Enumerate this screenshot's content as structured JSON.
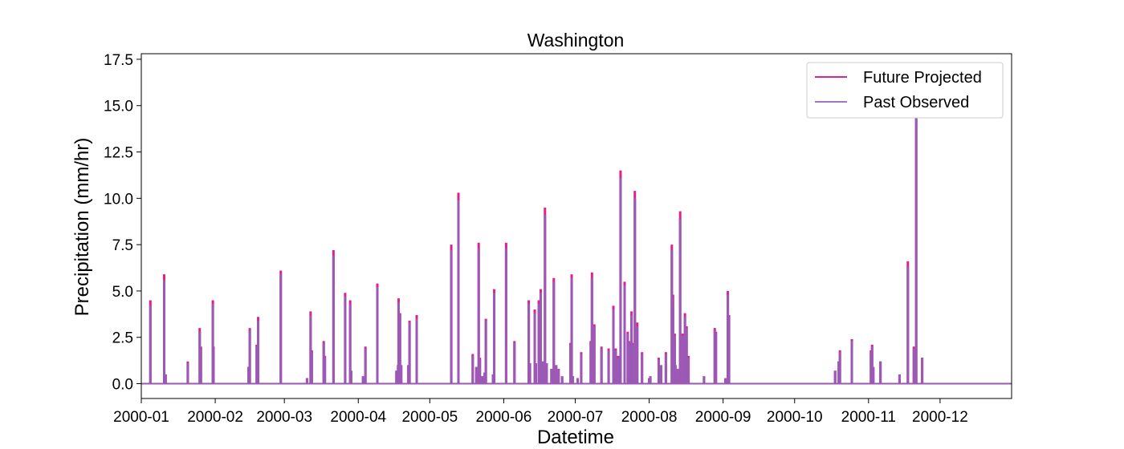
{
  "chart_data": {
    "type": "line",
    "title": "Washington",
    "xlabel": "Datetime",
    "ylabel": "Precipitation (mm/hr)",
    "x_range": [
      0,
      365
    ],
    "ylim": [
      -0.8,
      17.8
    ],
    "x_ticks": [
      {
        "label": "2000-01",
        "day": 0
      },
      {
        "label": "2000-02",
        "day": 31
      },
      {
        "label": "2000-03",
        "day": 60
      },
      {
        "label": "2000-04",
        "day": 91
      },
      {
        "label": "2000-05",
        "day": 121
      },
      {
        "label": "2000-06",
        "day": 152
      },
      {
        "label": "2000-07",
        "day": 182
      },
      {
        "label": "2000-08",
        "day": 213
      },
      {
        "label": "2000-09",
        "day": 244
      },
      {
        "label": "2000-10",
        "day": 274
      },
      {
        "label": "2000-11",
        "day": 305
      },
      {
        "label": "2000-12",
        "day": 335
      }
    ],
    "y_ticks": [
      0.0,
      2.5,
      5.0,
      7.5,
      10.0,
      12.5,
      15.0,
      17.5
    ],
    "y_tick_labels": [
      "0.0",
      "2.5",
      "5.0",
      "7.5",
      "10.0",
      "12.5",
      "15.0",
      "17.5"
    ],
    "grid": false,
    "legend_position": "top-right",
    "colors": {
      "future": "#e0218a",
      "past": "#9b79c6",
      "overlap": "#9b59b6"
    },
    "series": [
      {
        "name": "Future Projected",
        "color": "#e0218a",
        "peaks": [
          [
            3.8,
            4.5
          ],
          [
            9.6,
            5.9
          ],
          [
            10.2,
            0.5
          ],
          [
            19.5,
            1.2
          ],
          [
            24.5,
            3.0
          ],
          [
            25,
            2.0
          ],
          [
            30,
            4.5
          ],
          [
            30.3,
            2.0
          ],
          [
            45,
            0.9
          ],
          [
            45.5,
            3.0
          ],
          [
            48.4,
            2.1
          ],
          [
            49,
            3.6
          ],
          [
            58.5,
            6.1
          ],
          [
            69.5,
            0.3
          ],
          [
            71,
            3.9
          ],
          [
            71.5,
            1.8
          ],
          [
            76.5,
            2.3
          ],
          [
            77,
            1.5
          ],
          [
            80.6,
            7.2
          ],
          [
            85.5,
            4.9
          ],
          [
            87.6,
            4.5
          ],
          [
            88,
            0.7
          ],
          [
            93,
            0.4
          ],
          [
            94,
            2.0
          ],
          [
            99,
            5.4
          ],
          [
            107,
            0.7
          ],
          [
            107.7,
            1.0
          ],
          [
            107.9,
            4.6
          ],
          [
            108.5,
            3.8
          ],
          [
            109,
            1.0
          ],
          [
            112,
            1.0
          ],
          [
            112.5,
            3.4
          ],
          [
            115.5,
            3.7
          ],
          [
            130,
            7.5
          ],
          [
            133,
            10.3
          ],
          [
            139,
            1.6
          ],
          [
            140.5,
            0.9
          ],
          [
            141.5,
            7.6
          ],
          [
            142,
            1.4
          ],
          [
            143,
            0.4
          ],
          [
            144,
            0.6
          ],
          [
            144.5,
            3.5
          ],
          [
            147.5,
            0.5
          ],
          [
            148,
            5.1
          ],
          [
            153,
            7.6
          ],
          [
            156.5,
            2.3
          ],
          [
            162.5,
            4.5
          ],
          [
            163,
            1.1
          ],
          [
            165,
            4.0
          ],
          [
            165.5,
            1.1
          ],
          [
            166.7,
            4.5
          ],
          [
            167.5,
            5.1
          ],
          [
            168,
            1.2
          ],
          [
            168.7,
            1.2
          ],
          [
            169.3,
            9.5
          ],
          [
            170,
            1.1
          ],
          [
            172,
            0.8
          ],
          [
            173,
            5.7
          ],
          [
            174,
            1.0
          ],
          [
            175,
            0.8
          ],
          [
            176.5,
            0.4
          ],
          [
            180,
            2.2
          ],
          [
            180.5,
            5.9
          ],
          [
            181,
            0.4
          ],
          [
            183,
            0.3
          ],
          [
            184.5,
            1.7
          ],
          [
            188.5,
            2.3
          ],
          [
            189,
            6.0
          ],
          [
            190,
            3.2
          ],
          [
            193,
            2.0
          ],
          [
            196,
            1.9
          ],
          [
            198,
            4.2
          ],
          [
            199,
            1.9
          ],
          [
            200,
            1.5
          ],
          [
            201,
            11.5
          ],
          [
            202.7,
            5.5
          ],
          [
            204,
            2.8
          ],
          [
            204.5,
            2.3
          ],
          [
            205,
            2.2
          ],
          [
            205.6,
            3.9
          ],
          [
            206,
            2.2
          ],
          [
            207,
            10.4
          ],
          [
            208,
            3.3
          ],
          [
            210,
            1.7
          ],
          [
            213,
            0.3
          ],
          [
            213.5,
            0.4
          ],
          [
            217,
            1.4
          ],
          [
            218,
            1.0
          ],
          [
            220,
            1.7
          ],
          [
            222.5,
            7.5
          ],
          [
            223,
            4.8
          ],
          [
            223.7,
            2.7
          ],
          [
            224,
            1.0
          ],
          [
            225,
            0.8
          ],
          [
            226,
            9.3
          ],
          [
            227,
            2.7
          ],
          [
            228,
            3.8
          ],
          [
            228.7,
            3.1
          ],
          [
            229.5,
            1.5
          ],
          [
            236,
            0.4
          ],
          [
            240.5,
            3.0
          ],
          [
            241,
            2.8
          ],
          [
            245,
            0.3
          ],
          [
            246,
            5.0
          ],
          [
            246.5,
            3.7
          ],
          [
            291,
            0.7
          ],
          [
            292.5,
            1.2
          ],
          [
            293,
            1.8
          ],
          [
            298,
            2.4
          ],
          [
            306,
            1.8
          ],
          [
            306.5,
            2.1
          ],
          [
            307,
            0.9
          ],
          [
            310,
            1.2
          ],
          [
            318,
            0.5
          ],
          [
            321.5,
            6.6
          ],
          [
            324,
            2.0
          ],
          [
            325,
            16.5
          ],
          [
            327.5,
            1.4
          ]
        ]
      },
      {
        "name": "Past Observed",
        "color": "#9b79c6",
        "peaks": [
          [
            3.8,
            4.2
          ],
          [
            9.6,
            5.6
          ],
          [
            10.2,
            0.5
          ],
          [
            19.5,
            1.1
          ],
          [
            24.5,
            2.8
          ],
          [
            25,
            1.9
          ],
          [
            30,
            4.3
          ],
          [
            30.3,
            1.9
          ],
          [
            45,
            0.9
          ],
          [
            45.5,
            2.9
          ],
          [
            48.4,
            2.0
          ],
          [
            49,
            3.4
          ],
          [
            58.5,
            5.9
          ],
          [
            69.5,
            0.3
          ],
          [
            71,
            3.7
          ],
          [
            71.5,
            1.7
          ],
          [
            76.5,
            2.2
          ],
          [
            77,
            1.4
          ],
          [
            80.6,
            6.9
          ],
          [
            85.5,
            4.7
          ],
          [
            87.6,
            4.3
          ],
          [
            88,
            0.7
          ],
          [
            93,
            0.4
          ],
          [
            94,
            1.9
          ],
          [
            99,
            5.2
          ],
          [
            107,
            0.7
          ],
          [
            107.7,
            1.0
          ],
          [
            107.9,
            4.4
          ],
          [
            108.5,
            3.7
          ],
          [
            109,
            1.0
          ],
          [
            112,
            1.0
          ],
          [
            112.5,
            3.3
          ],
          [
            115.5,
            3.5
          ],
          [
            130,
            7.2
          ],
          [
            133,
            9.9
          ],
          [
            139,
            1.5
          ],
          [
            140.5,
            0.9
          ],
          [
            141.5,
            7.3
          ],
          [
            142,
            1.3
          ],
          [
            143,
            0.4
          ],
          [
            144,
            0.6
          ],
          [
            144.5,
            3.4
          ],
          [
            147.5,
            0.5
          ],
          [
            148,
            4.9
          ],
          [
            153,
            7.3
          ],
          [
            156.5,
            2.2
          ],
          [
            162.5,
            4.3
          ],
          [
            163,
            1.1
          ],
          [
            165,
            3.8
          ],
          [
            165.5,
            1.1
          ],
          [
            166.7,
            4.3
          ],
          [
            167.5,
            4.9
          ],
          [
            168,
            1.2
          ],
          [
            168.7,
            1.2
          ],
          [
            169.3,
            9.1
          ],
          [
            170,
            1.1
          ],
          [
            172,
            0.8
          ],
          [
            173,
            5.5
          ],
          [
            174,
            1.0
          ],
          [
            175,
            0.8
          ],
          [
            176.5,
            0.4
          ],
          [
            180,
            2.1
          ],
          [
            180.5,
            5.7
          ],
          [
            181,
            0.4
          ],
          [
            183,
            0.3
          ],
          [
            184.5,
            1.6
          ],
          [
            188.5,
            2.2
          ],
          [
            189,
            5.7
          ],
          [
            190,
            3.1
          ],
          [
            193,
            1.9
          ],
          [
            196,
            1.8
          ],
          [
            198,
            4.0
          ],
          [
            199,
            1.8
          ],
          [
            200,
            1.4
          ],
          [
            201,
            11.1
          ],
          [
            202.7,
            5.3
          ],
          [
            204,
            2.7
          ],
          [
            204.5,
            2.2
          ],
          [
            205,
            2.1
          ],
          [
            205.6,
            3.7
          ],
          [
            206,
            2.1
          ],
          [
            207,
            10.0
          ],
          [
            208,
            3.1
          ],
          [
            210,
            1.6
          ],
          [
            213,
            0.3
          ],
          [
            213.5,
            0.4
          ],
          [
            217,
            1.3
          ],
          [
            218,
            1.0
          ],
          [
            220,
            1.6
          ],
          [
            222.5,
            7.2
          ],
          [
            223,
            4.6
          ],
          [
            223.7,
            2.6
          ],
          [
            224,
            1.0
          ],
          [
            225,
            0.8
          ],
          [
            226,
            8.9
          ],
          [
            227,
            2.6
          ],
          [
            228,
            3.6
          ],
          [
            228.7,
            3.0
          ],
          [
            229.5,
            1.4
          ],
          [
            236,
            0.4
          ],
          [
            240.5,
            2.9
          ],
          [
            241,
            2.7
          ],
          [
            245,
            0.3
          ],
          [
            246,
            4.8
          ],
          [
            246.5,
            3.6
          ],
          [
            291,
            0.7
          ],
          [
            292.5,
            1.2
          ],
          [
            293,
            1.7
          ],
          [
            298,
            2.3
          ],
          [
            306,
            1.7
          ],
          [
            306.5,
            2.0
          ],
          [
            307,
            0.9
          ],
          [
            310,
            1.2
          ],
          [
            318,
            0.5
          ],
          [
            321.5,
            6.3
          ],
          [
            324,
            1.9
          ],
          [
            325,
            15.8
          ],
          [
            327.5,
            1.4
          ]
        ]
      }
    ]
  }
}
